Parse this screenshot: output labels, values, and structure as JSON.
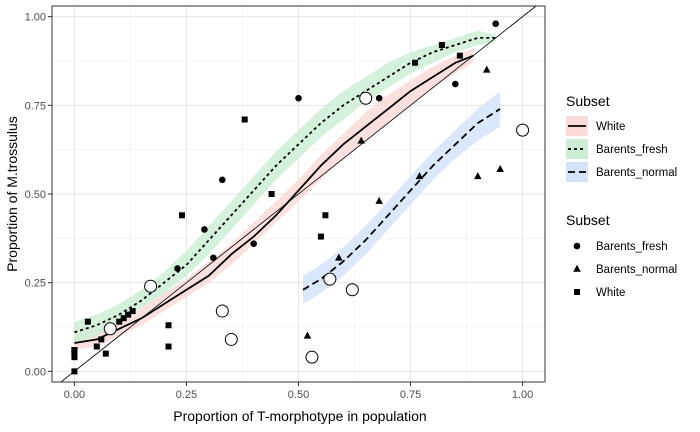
{
  "chart_data": {
    "type": "scatter",
    "xlabel": "Proportion of T-morphotype in population",
    "ylabel": "Proportion of M.trossulus",
    "xlim": [
      -0.05,
      1.05
    ],
    "ylim": [
      -0.03,
      1.03
    ],
    "xticks": [
      0,
      0.25,
      0.5,
      0.75,
      1
    ],
    "xtick_labels": [
      "0.00",
      "0.25",
      "0.50",
      "0.75",
      "1.00"
    ],
    "yticks": [
      0,
      0.25,
      0.5,
      0.75,
      1
    ],
    "ytick_labels": [
      "0.00",
      "0.25",
      "0.50",
      "0.75",
      "1.00"
    ],
    "grid": true,
    "reference_line": "y = x",
    "line_legend": {
      "title": "Subset",
      "entries": [
        {
          "label": "White",
          "linetype": "solid",
          "fill": "#fadbd8"
        },
        {
          "label": "Barents_fresh",
          "linetype": "dotted",
          "fill": "#cdeed6"
        },
        {
          "label": "Barents_normal",
          "linetype": "dashed",
          "fill": "#d5e3fa"
        }
      ]
    },
    "point_legend": {
      "title": "Subset",
      "entries": [
        {
          "label": "Barents_fresh",
          "shape": "circle"
        },
        {
          "label": "Barents_normal",
          "shape": "triangle"
        },
        {
          "label": "White",
          "shape": "square"
        }
      ]
    },
    "curves": [
      {
        "subset": "White",
        "linetype": "solid",
        "fill": "#fadbd8",
        "x": [
          0,
          0.05,
          0.1,
          0.15,
          0.2,
          0.25,
          0.3,
          0.35,
          0.4,
          0.45,
          0.5,
          0.55,
          0.6,
          0.65,
          0.7,
          0.75,
          0.8,
          0.85,
          0.89
        ],
        "y": [
          0.08,
          0.09,
          0.12,
          0.15,
          0.19,
          0.23,
          0.27,
          0.33,
          0.38,
          0.44,
          0.51,
          0.58,
          0.64,
          0.69,
          0.74,
          0.79,
          0.83,
          0.87,
          0.89
        ],
        "lower": [
          0.06,
          0.07,
          0.1,
          0.13,
          0.17,
          0.21,
          0.25,
          0.3,
          0.36,
          0.42,
          0.48,
          0.54,
          0.6,
          0.65,
          0.7,
          0.75,
          0.8,
          0.84,
          0.87
        ],
        "upper": [
          0.11,
          0.12,
          0.14,
          0.18,
          0.22,
          0.26,
          0.31,
          0.36,
          0.42,
          0.48,
          0.54,
          0.61,
          0.67,
          0.73,
          0.78,
          0.82,
          0.86,
          0.89,
          0.91
        ]
      },
      {
        "subset": "Barents_fresh",
        "linetype": "dotted",
        "fill": "#cdeed6",
        "x": [
          0,
          0.05,
          0.1,
          0.15,
          0.2,
          0.25,
          0.3,
          0.35,
          0.4,
          0.45,
          0.5,
          0.55,
          0.6,
          0.65,
          0.7,
          0.75,
          0.8,
          0.85,
          0.9,
          0.94
        ],
        "y": [
          0.11,
          0.13,
          0.16,
          0.2,
          0.25,
          0.3,
          0.37,
          0.44,
          0.51,
          0.58,
          0.64,
          0.7,
          0.75,
          0.79,
          0.83,
          0.87,
          0.9,
          0.92,
          0.94,
          0.94
        ],
        "lower": [
          0.08,
          0.1,
          0.14,
          0.18,
          0.22,
          0.27,
          0.33,
          0.4,
          0.47,
          0.54,
          0.6,
          0.66,
          0.71,
          0.76,
          0.8,
          0.84,
          0.87,
          0.9,
          0.92,
          0.93
        ],
        "upper": [
          0.14,
          0.16,
          0.19,
          0.23,
          0.28,
          0.34,
          0.41,
          0.48,
          0.55,
          0.62,
          0.68,
          0.74,
          0.79,
          0.83,
          0.87,
          0.9,
          0.92,
          0.94,
          0.96,
          0.95
        ]
      },
      {
        "subset": "Barents_normal",
        "linetype": "dashed",
        "fill": "#d5e3fa",
        "x": [
          0.51,
          0.55,
          0.6,
          0.65,
          0.7,
          0.75,
          0.8,
          0.85,
          0.9,
          0.95
        ],
        "y": [
          0.23,
          0.26,
          0.31,
          0.37,
          0.44,
          0.51,
          0.58,
          0.64,
          0.7,
          0.74
        ],
        "lower": [
          0.19,
          0.22,
          0.27,
          0.33,
          0.4,
          0.47,
          0.54,
          0.6,
          0.65,
          0.69
        ],
        "upper": [
          0.27,
          0.3,
          0.35,
          0.41,
          0.48,
          0.55,
          0.62,
          0.68,
          0.74,
          0.79
        ]
      }
    ],
    "points": [
      {
        "subset": "Barents_fresh",
        "shape": "circle",
        "x": [
          0.23,
          0.29,
          0.31,
          0.33,
          0.4,
          0.5,
          0.68,
          0.85,
          0.94
        ],
        "y": [
          0.29,
          0.4,
          0.32,
          0.54,
          0.36,
          0.77,
          0.77,
          0.81,
          0.98
        ]
      },
      {
        "subset": "Barents_normal",
        "shape": "triangle",
        "x": [
          0.52,
          0.59,
          0.64,
          0.68,
          0.77,
          0.9,
          0.92,
          0.95
        ],
        "y": [
          0.1,
          0.32,
          0.65,
          0.48,
          0.55,
          0.55,
          0.85,
          0.57
        ]
      },
      {
        "subset": "White",
        "shape": "square",
        "x": [
          0,
          0,
          0,
          0,
          0,
          0.03,
          0.05,
          0.06,
          0.07,
          0.1,
          0.11,
          0.12,
          0.13,
          0.21,
          0.21,
          0.24,
          0.38,
          0.44,
          0.55,
          0.56,
          0.76,
          0.82,
          0.86
        ],
        "y": [
          0.0,
          0.04,
          0.05,
          0.06,
          0.06,
          0.14,
          0.07,
          0.09,
          0.05,
          0.14,
          0.15,
          0.16,
          0.17,
          0.07,
          0.13,
          0.44,
          0.71,
          0.5,
          0.38,
          0.44,
          0.87,
          0.92,
          0.89
        ]
      },
      {
        "subset": "open circles",
        "shape": "open-circle",
        "x": [
          0.08,
          0.17,
          0.33,
          0.35,
          0.53,
          0.57,
          0.62,
          0.65,
          1.0
        ],
        "y": [
          0.12,
          0.24,
          0.17,
          0.09,
          0.04,
          0.26,
          0.23,
          0.77,
          0.68
        ]
      }
    ]
  }
}
